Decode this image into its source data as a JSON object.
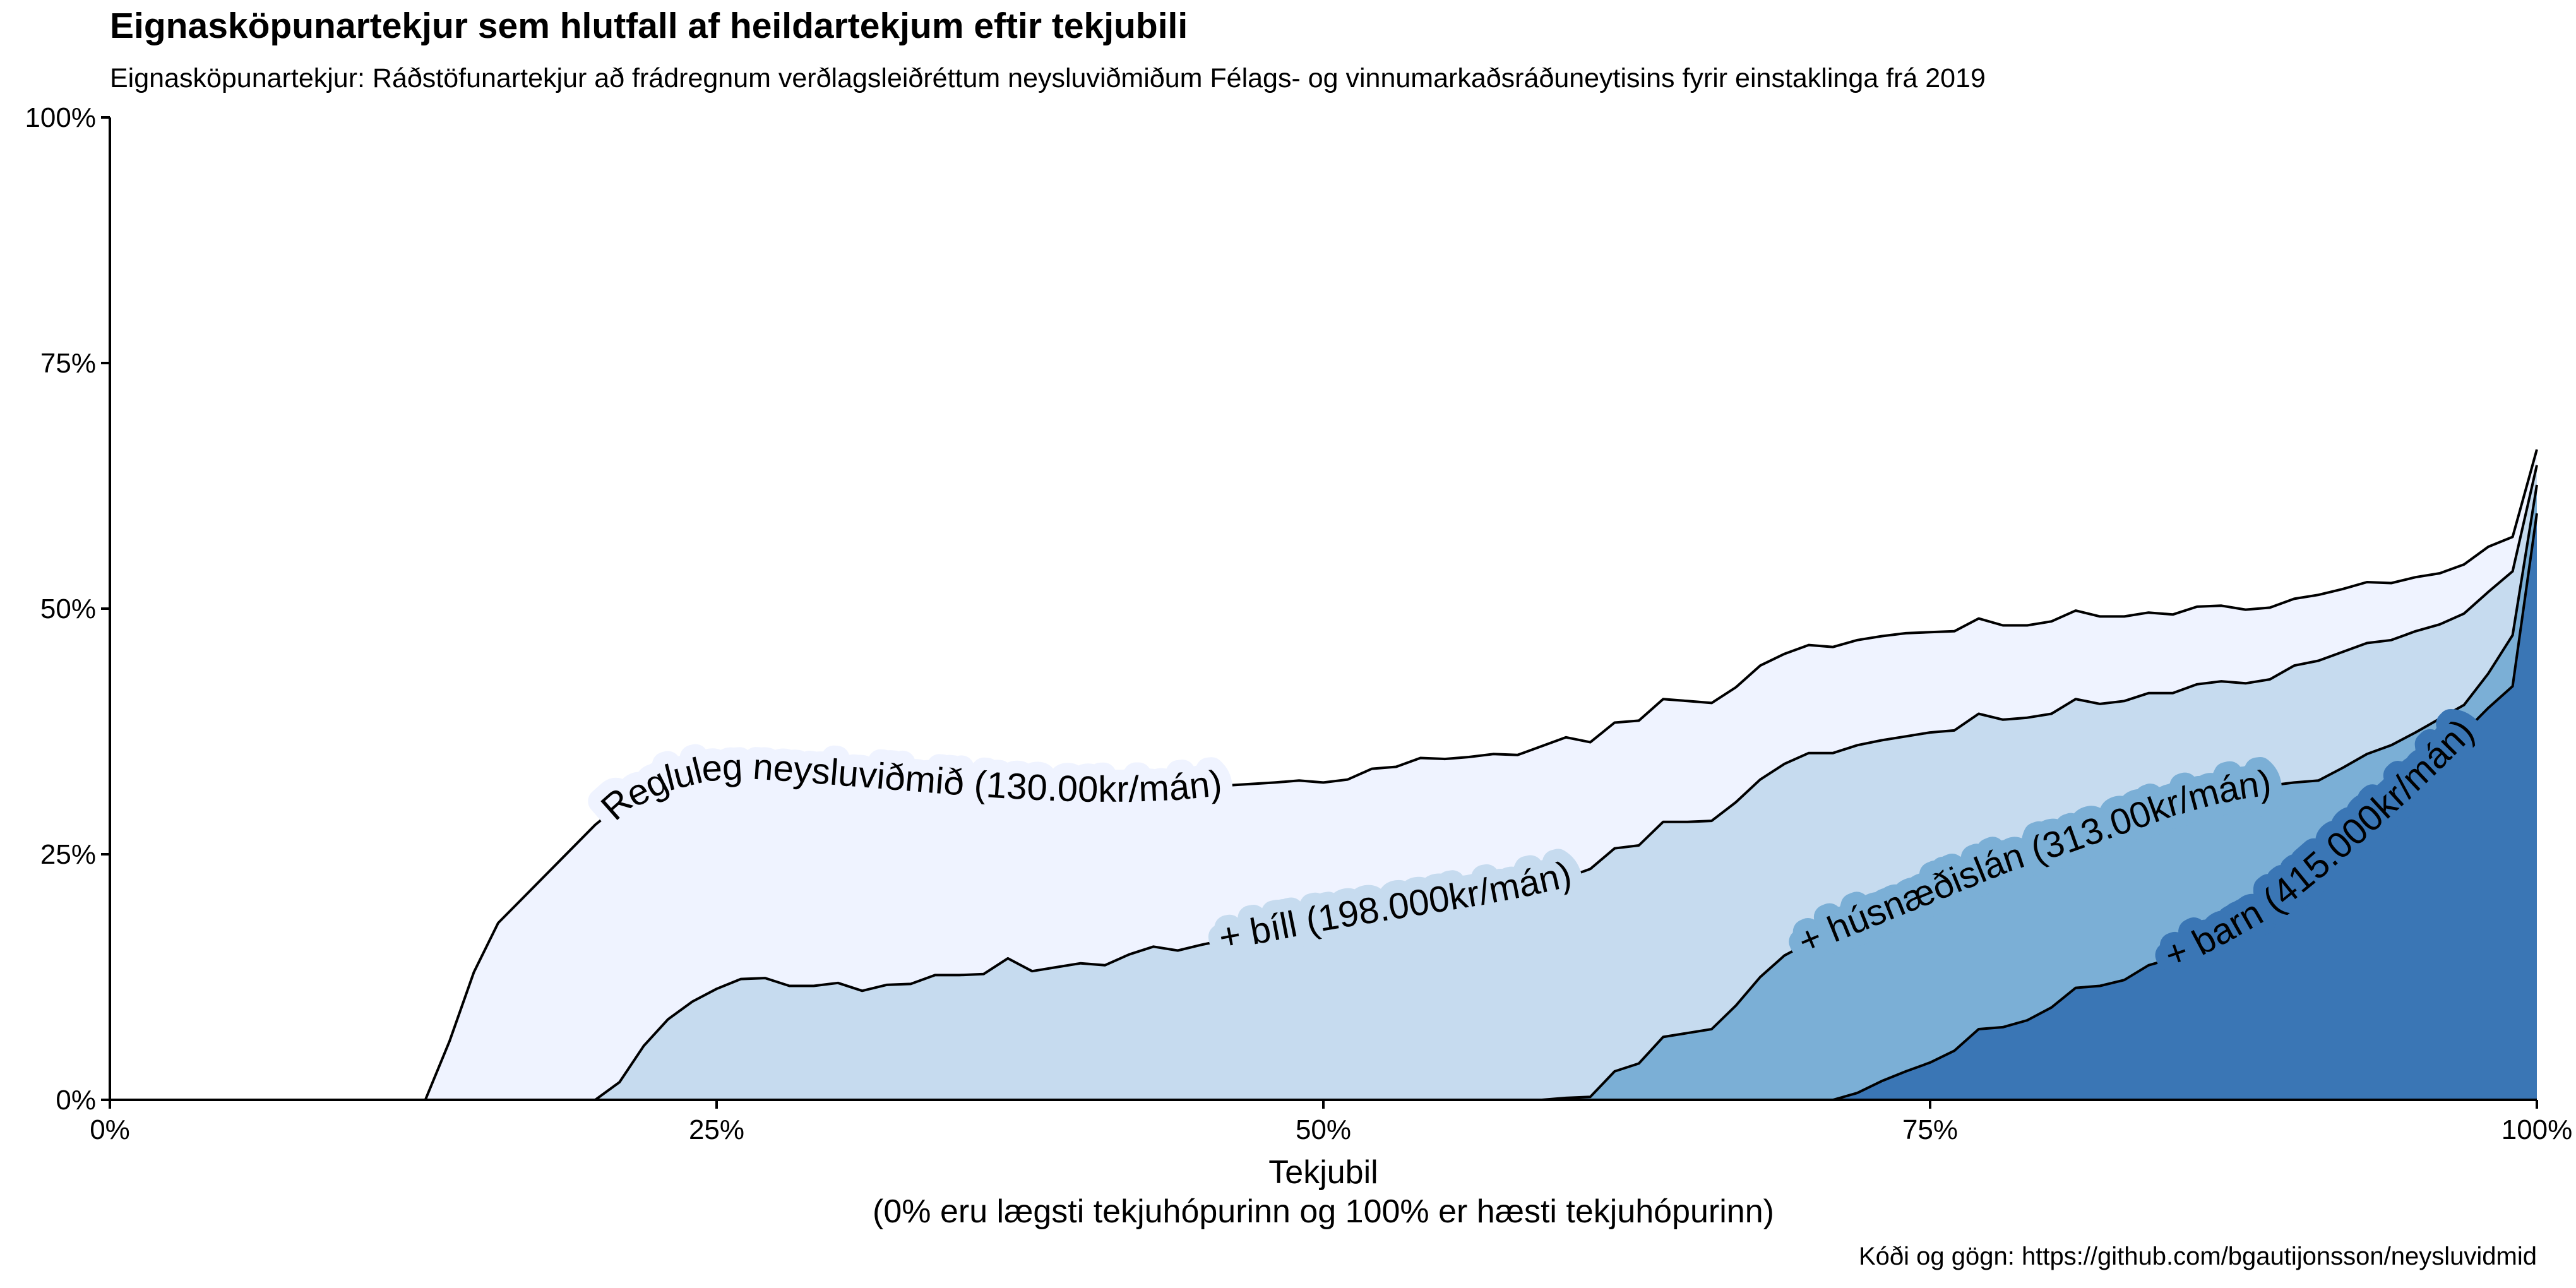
{
  "title": "Eignasköpunartekjur sem hlutfall af heildartekjum eftir tekjubili",
  "subtitle": "Eignasköpunartekjur: Ráðstöfunartekjur að frádregnum verðlagsleiðréttum neysluviðmiðum Félags- og vinnumarkaðsráðuneytisins fyrir einstaklinga frá 2019",
  "caption": "Kóði og gögn: https://github.com/bgautijonsson/neysluvidmid",
  "chart_data": {
    "type": "area",
    "title": "Eignasköpunartekjur sem hlutfall af heildartekjum eftir tekjubili",
    "xlabel_line1": "Tekjubil",
    "xlabel_line2": "(0% eru lægsti tekjuhópurinn og 100% er hæsti tekjuhópurinn)",
    "ylabel": "",
    "xlim": [
      0,
      100
    ],
    "ylim": [
      0,
      100
    ],
    "x_ticks": [
      "0%",
      "25%",
      "50%",
      "75%",
      "100%"
    ],
    "y_ticks": [
      "0%",
      "25%",
      "50%",
      "75%",
      "100%"
    ],
    "grid": false,
    "legend": "none (curves labelled inline)",
    "series": [
      {
        "name": "Regluleg neysluviðmið (130.00kr/mán)",
        "color": "#eff3ff",
        "points": [
          [
            0,
            0
          ],
          [
            13,
            0
          ],
          [
            14,
            6
          ],
          [
            15,
            13
          ],
          [
            16,
            18
          ],
          [
            17,
            20.5
          ],
          [
            18,
            23
          ],
          [
            19,
            25.5
          ],
          [
            20,
            28
          ],
          [
            21,
            30
          ],
          [
            22,
            31.5
          ],
          [
            23,
            32.5
          ],
          [
            24,
            33.3
          ],
          [
            25,
            33.5
          ],
          [
            26,
            33.7
          ],
          [
            27,
            33.6
          ],
          [
            28,
            33.4
          ],
          [
            29,
            33.2
          ],
          [
            30,
            33
          ],
          [
            32,
            32.6
          ],
          [
            34,
            32.2
          ],
          [
            36,
            31.8
          ],
          [
            38,
            31.5
          ],
          [
            40,
            31.3
          ],
          [
            42,
            31.3
          ],
          [
            44,
            31.5
          ],
          [
            46,
            32
          ],
          [
            48,
            32.3
          ],
          [
            49,
            32.5
          ],
          [
            50,
            32.3
          ],
          [
            51,
            32.6
          ],
          [
            52,
            33.7
          ],
          [
            53,
            33.9
          ],
          [
            54,
            34.8
          ],
          [
            55,
            34.7
          ],
          [
            56,
            34.9
          ],
          [
            57,
            35.2
          ],
          [
            58,
            35.1
          ],
          [
            59,
            36
          ],
          [
            60,
            36.9
          ],
          [
            61,
            36.4
          ],
          [
            62,
            38.4
          ],
          [
            63,
            38.6
          ],
          [
            64,
            40.8
          ],
          [
            65,
            40.6
          ],
          [
            66,
            40.4
          ],
          [
            67,
            42
          ],
          [
            68,
            44.2
          ],
          [
            69,
            45.4
          ],
          [
            70,
            46.3
          ],
          [
            71,
            46.1
          ],
          [
            72,
            46.8
          ],
          [
            73,
            47.2
          ],
          [
            74,
            47.5
          ],
          [
            75,
            47.6
          ],
          [
            76,
            47.7
          ],
          [
            77,
            49
          ],
          [
            78,
            48.3
          ],
          [
            79,
            48.3
          ],
          [
            80,
            48.7
          ],
          [
            81,
            49.8
          ],
          [
            82,
            49.2
          ],
          [
            83,
            49.2
          ],
          [
            84,
            49.6
          ],
          [
            85,
            49.4
          ],
          [
            86,
            50.2
          ],
          [
            87,
            50.3
          ],
          [
            88,
            49.9
          ],
          [
            89,
            50.1
          ],
          [
            90,
            51
          ],
          [
            91,
            51.4
          ],
          [
            92,
            52
          ],
          [
            93,
            52.7
          ],
          [
            94,
            52.6
          ],
          [
            95,
            53.2
          ],
          [
            96,
            53.6
          ],
          [
            97,
            54.5
          ],
          [
            98,
            56.3
          ],
          [
            99,
            57.3
          ],
          [
            100,
            66.2
          ]
        ]
      },
      {
        "name": "+ bíll (198.000kr/mán)",
        "color": "#c6dbef",
        "points": [
          [
            0,
            0
          ],
          [
            20,
            0
          ],
          [
            21,
            1.8
          ],
          [
            22,
            5.5
          ],
          [
            23,
            8.2
          ],
          [
            24,
            10
          ],
          [
            25,
            11.3
          ],
          [
            26,
            12.3
          ],
          [
            27,
            12.4
          ],
          [
            28,
            11.6
          ],
          [
            29,
            11.6
          ],
          [
            30,
            11.9
          ],
          [
            31,
            11.1
          ],
          [
            32,
            11.7
          ],
          [
            33,
            11.8
          ],
          [
            34,
            12.7
          ],
          [
            35,
            12.7
          ],
          [
            36,
            12.8
          ],
          [
            37,
            14.4
          ],
          [
            38,
            13.1
          ],
          [
            39,
            13.5
          ],
          [
            40,
            13.9
          ],
          [
            41,
            13.7
          ],
          [
            42,
            14.8
          ],
          [
            43,
            15.6
          ],
          [
            44,
            15.2
          ],
          [
            45,
            15.8
          ],
          [
            46,
            16.3
          ],
          [
            48,
            17.2
          ],
          [
            50,
            18.2
          ],
          [
            52,
            19
          ],
          [
            54,
            19.8
          ],
          [
            56,
            20.6
          ],
          [
            58,
            21.5
          ],
          [
            60,
            22.6
          ],
          [
            61,
            23.5
          ],
          [
            62,
            25.6
          ],
          [
            63,
            25.9
          ],
          [
            64,
            28.3
          ],
          [
            65,
            28.3
          ],
          [
            66,
            28.4
          ],
          [
            67,
            30.3
          ],
          [
            68,
            32.6
          ],
          [
            69,
            34.2
          ],
          [
            70,
            35.3
          ],
          [
            71,
            35.3
          ],
          [
            72,
            36.1
          ],
          [
            73,
            36.6
          ],
          [
            74,
            37
          ],
          [
            75,
            37.4
          ],
          [
            76,
            37.6
          ],
          [
            77,
            39.3
          ],
          [
            78,
            38.7
          ],
          [
            79,
            38.9
          ],
          [
            80,
            39.3
          ],
          [
            81,
            40.8
          ],
          [
            82,
            40.3
          ],
          [
            83,
            40.6
          ],
          [
            84,
            41.4
          ],
          [
            85,
            41.4
          ],
          [
            86,
            42.3
          ],
          [
            87,
            42.6
          ],
          [
            88,
            42.4
          ],
          [
            89,
            42.8
          ],
          [
            90,
            44.2
          ],
          [
            91,
            44.7
          ],
          [
            92,
            45.6
          ],
          [
            93,
            46.5
          ],
          [
            94,
            46.8
          ],
          [
            95,
            47.7
          ],
          [
            96,
            48.4
          ],
          [
            97,
            49.5
          ],
          [
            98,
            51.7
          ],
          [
            99,
            53.8
          ],
          [
            100,
            64.6
          ]
        ]
      },
      {
        "name": "+ húsnæðislán (313.00kr/mán)",
        "color": "#7bafd6",
        "points": [
          [
            0,
            0
          ],
          [
            59,
            0
          ],
          [
            60,
            0.2
          ],
          [
            61,
            0.3
          ],
          [
            62,
            2.9
          ],
          [
            63,
            3.7
          ],
          [
            64,
            6.4
          ],
          [
            65,
            6.8
          ],
          [
            66,
            7.2
          ],
          [
            67,
            9.6
          ],
          [
            68,
            12.5
          ],
          [
            69,
            14.7
          ],
          [
            70,
            16
          ],
          [
            71,
            17
          ],
          [
            72,
            18
          ],
          [
            73,
            19
          ],
          [
            74,
            20
          ],
          [
            75,
            21
          ],
          [
            76,
            22
          ],
          [
            77,
            23
          ],
          [
            78,
            24
          ],
          [
            79,
            25
          ],
          [
            80,
            25.5
          ],
          [
            81,
            26.4
          ],
          [
            82,
            27.3
          ],
          [
            83,
            28.1
          ],
          [
            84,
            29
          ],
          [
            85,
            29.9
          ],
          [
            86,
            30.6
          ],
          [
            87,
            31.2
          ],
          [
            88,
            31.7
          ],
          [
            89,
            32
          ],
          [
            90,
            32.3
          ],
          [
            91,
            32.5
          ],
          [
            92,
            33.8
          ],
          [
            93,
            35.2
          ],
          [
            94,
            36.1
          ],
          [
            95,
            37.4
          ],
          [
            96,
            38.8
          ],
          [
            97,
            40.2
          ],
          [
            98,
            43.4
          ],
          [
            99,
            47.3
          ],
          [
            100,
            62.6
          ]
        ]
      },
      {
        "name": "+ barn (415.000kr/mán)",
        "color": "#3a76b5",
        "points": [
          [
            0,
            0
          ],
          [
            71,
            0
          ],
          [
            72,
            0.7
          ],
          [
            73,
            1.9
          ],
          [
            74,
            2.9
          ],
          [
            75,
            3.8
          ],
          [
            76,
            5
          ],
          [
            77,
            7.2
          ],
          [
            78,
            7.4
          ],
          [
            79,
            8.1
          ],
          [
            80,
            9.4
          ],
          [
            81,
            11.4
          ],
          [
            82,
            11.6
          ],
          [
            83,
            12.2
          ],
          [
            84,
            13.7
          ],
          [
            85,
            14.4
          ],
          [
            86,
            15.5
          ],
          [
            87,
            16.8
          ],
          [
            88,
            18.2
          ],
          [
            89,
            19.6
          ],
          [
            90,
            21.6
          ],
          [
            91,
            23.6
          ],
          [
            92,
            25.8
          ],
          [
            93,
            28
          ],
          [
            94,
            30.2
          ],
          [
            95,
            32.5
          ],
          [
            96,
            34.9
          ],
          [
            97,
            37.4
          ],
          [
            98,
            39.9
          ],
          [
            99,
            42.1
          ],
          [
            100,
            59.7
          ]
        ]
      }
    ]
  }
}
